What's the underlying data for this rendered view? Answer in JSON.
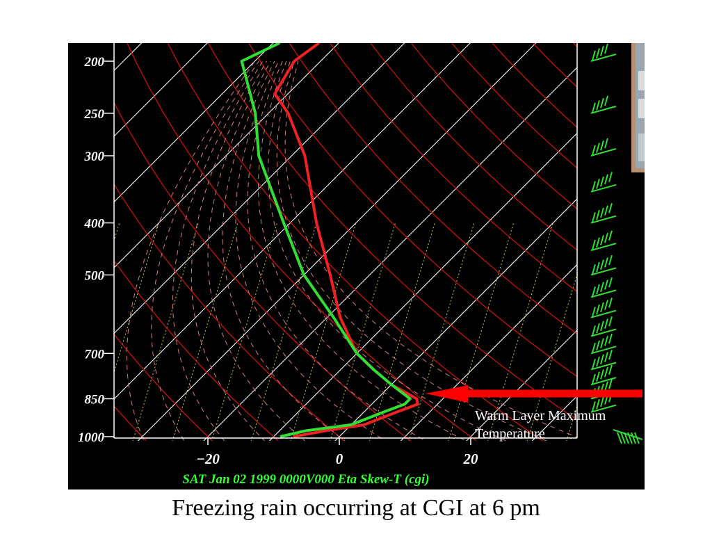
{
  "caption": "Freezing rain occurring at CGI at 6 pm",
  "chart_data": {
    "type": "line",
    "subtype": "skew-t log-p sounding",
    "title": "",
    "footer": "SAT Jan 02 1999 0000V000 Eta Skew-T (cgi)",
    "xlabel": "",
    "ylabel": "",
    "y_ticks": [
      200,
      250,
      300,
      400,
      500,
      700,
      850,
      1000
    ],
    "x_ticks": [
      -20,
      0,
      20
    ],
    "y_range": [
      1000,
      185
    ],
    "x_range_at_1000hpa": [
      -34,
      36
    ],
    "y_scale": "log",
    "series": [
      {
        "color": "#ee2222",
        "points": [
          {
            "p": 1000,
            "t": -7
          },
          {
            "p": 975,
            "t": -3
          },
          {
            "p": 950,
            "t": 2
          },
          {
            "p": 900,
            "t": 5
          },
          {
            "p": 870,
            "t": 7
          },
          {
            "p": 850,
            "t": 6
          },
          {
            "p": 800,
            "t": 0
          },
          {
            "p": 750,
            "t": -5
          },
          {
            "p": 700,
            "t": -10
          },
          {
            "p": 600,
            "t": -18
          },
          {
            "p": 500,
            "t": -26
          },
          {
            "p": 400,
            "t": -36
          },
          {
            "p": 300,
            "t": -48
          },
          {
            "p": 250,
            "t": -57
          },
          {
            "p": 230,
            "t": -62
          },
          {
            "p": 200,
            "t": -64
          },
          {
            "p": 185,
            "t": -63
          }
        ]
      },
      {
        "color": "#33dd33",
        "points": [
          {
            "p": 1000,
            "t": -9
          },
          {
            "p": 975,
            "t": -6
          },
          {
            "p": 950,
            "t": 0
          },
          {
            "p": 900,
            "t": 3
          },
          {
            "p": 870,
            "t": 5
          },
          {
            "p": 850,
            "t": 5
          },
          {
            "p": 800,
            "t": 0
          },
          {
            "p": 750,
            "t": -5
          },
          {
            "p": 700,
            "t": -10
          },
          {
            "p": 600,
            "t": -19
          },
          {
            "p": 500,
            "t": -30
          },
          {
            "p": 400,
            "t": -41
          },
          {
            "p": 300,
            "t": -55
          },
          {
            "p": 250,
            "t": -62
          },
          {
            "p": 200,
            "t": -72
          },
          {
            "p": 185,
            "t": -69
          }
        ]
      }
    ],
    "annotations": [
      {
        "text_lines": [
          "Warm Layer Maximum",
          "Temperature"
        ],
        "arrow_color": "#ff0000",
        "points_to": {
          "p": 850,
          "t": 6
        }
      }
    ],
    "colors": {
      "background": "#000000",
      "isotherm": "#ffffff",
      "dry_adiabat": "#cc1111",
      "moist_adiabat": "#d08080",
      "mixing_ratio": "#cccc44",
      "wind_barbs": "#33dd33",
      "arrow": "#ff0000"
    },
    "wind_barbs": true,
    "grid": true
  }
}
